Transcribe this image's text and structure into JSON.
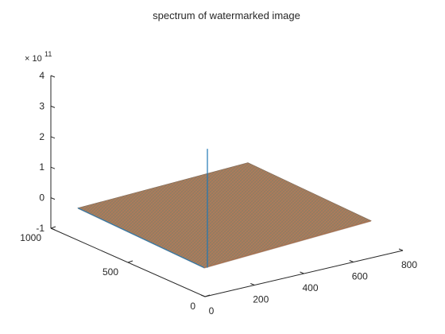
{
  "chart_data": {
    "type": "surface",
    "title": "spectrum of watermarked image",
    "xlabel": "",
    "ylabel": "",
    "zlabel": "",
    "z_exponent_label": "× 10",
    "z_exponent_power": "11",
    "xlim": [
      0,
      800
    ],
    "ylim": [
      0,
      1000
    ],
    "zlim": [
      -1,
      4
    ],
    "x_ticks": [
      "0",
      "200",
      "400",
      "600",
      "800"
    ],
    "y_ticks": [
      "0",
      "500",
      "1000"
    ],
    "z_ticks": [
      "-1",
      "0",
      "1",
      "2",
      "3",
      "4"
    ],
    "x_tick_values": [
      0,
      200,
      400,
      600,
      800
    ],
    "y_tick_values": [
      0,
      500,
      1000
    ],
    "z_tick_values": [
      -1,
      0,
      1,
      2,
      3,
      4
    ],
    "surface_extent": {
      "x": [
        0,
        700
      ],
      "y": [
        0,
        1000
      ]
    },
    "baseline_z": 0,
    "peak": {
      "x": 0,
      "y": 0,
      "z": 1.6
    },
    "grid": false,
    "colors": {
      "surface": "#9c7a5f",
      "surface_dark": "#7f6a58",
      "surface_light": "#c07a56",
      "edge_blue": "#1f77b4",
      "peak": "#1f77b4",
      "axis": "#262626"
    }
  }
}
